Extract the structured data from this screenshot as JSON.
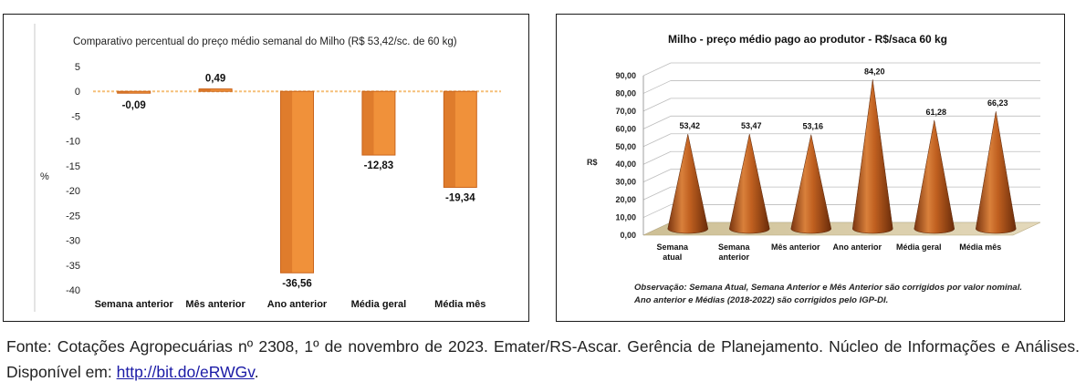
{
  "chart_data": [
    {
      "type": "bar",
      "title": "Comparativo percentual do preço médio semanal do Milho (R$ 53,42/sc. de 60 kg)",
      "ylabel": "%",
      "categories": [
        "Semana anterior",
        "Mês anterior",
        "Ano anterior",
        "Média geral",
        "Média mês"
      ],
      "values": [
        -0.09,
        0.49,
        -36.56,
        -12.83,
        -19.34
      ],
      "value_labels": [
        "-0,09",
        "0,49",
        "-36,56",
        "-12,83",
        "-19,34"
      ],
      "ylim": [
        -40,
        5
      ],
      "yticks": [
        5,
        0,
        -5,
        -10,
        -15,
        -20,
        -25,
        -30,
        -35,
        -40
      ],
      "ytick_labels": [
        "5",
        "0",
        "-5",
        "-10",
        "-15",
        "-20",
        "-25",
        "-30",
        "-35",
        "-40"
      ],
      "grid": false,
      "legend": "none",
      "colors": {
        "bar": "#f0913a",
        "bar_dark": "#c9641c",
        "baseline": "#f5c07a"
      }
    },
    {
      "type": "bar",
      "title": "Milho - preço médio pago ao produtor - R$/saca 60 kg",
      "ylabel": "R$",
      "categories": [
        "Semana\natual",
        "Semana\nanterior",
        "Mês anterior",
        "Ano anterior",
        "Média geral",
        "Média mês"
      ],
      "values": [
        53.42,
        53.47,
        53.16,
        84.2,
        61.28,
        66.23
      ],
      "value_labels": [
        "53,42",
        "53,47",
        "53,16",
        "84,20",
        "61,28",
        "66,23"
      ],
      "ylim": [
        0,
        90
      ],
      "yticks": [
        0,
        10,
        20,
        30,
        40,
        50,
        60,
        70,
        80,
        90
      ],
      "ytick_labels": [
        "0,00",
        "10,00",
        "20,00",
        "30,00",
        "40,00",
        "50,00",
        "60,00",
        "70,00",
        "80,00",
        "90,00"
      ],
      "grid": true,
      "legend": "none",
      "style": "3d-cone",
      "colors": {
        "cone": "#b5561a",
        "cone_light": "#e08a42",
        "floor": "#d8cba8"
      }
    }
  ],
  "observation": "Observação: Semana Atual, Semana Anterior e Mês Anterior são corrigidos por valor nominal. Ano anterior e Médias (2018-2022) são corrigidos pelo IGP-DI.",
  "caption": {
    "text": "Fonte: Cotações Agropecuárias nº 2308, 1º de novembro de 2023. Emater/RS-Ascar. Gerência de Planejamento. Núcleo de Informações e Análises. Disponível em: ",
    "link": "http://bit.do/eRWGv",
    "end": "."
  }
}
